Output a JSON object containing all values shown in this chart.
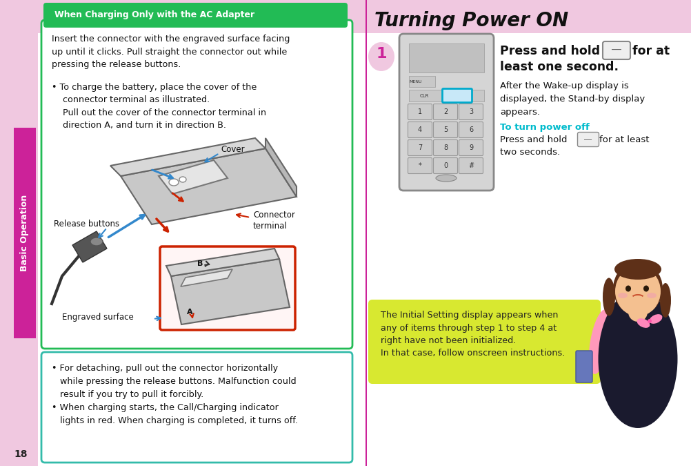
{
  "bg_color": "#f0c8e0",
  "white": "#ffffff",
  "sidebar_magenta": "#cc2299",
  "page_number": "18",
  "sidebar_text": "Basic Operation",
  "green_title_bg": "#22bb55",
  "green_border": "#22bb55",
  "charging_title": "When Charging Only with the AC Adapter",
  "charging_text": "Insert the connector with the engraved surface facing\nup until it clicks. Pull straight the connector out while\npressing the release buttons.",
  "charging_bullet": "• To charge the battery, place the cover of the\n    connector terminal as illustrated.\n    Pull out the cover of the connector terminal in\n    direction A, and turn it in direction B.",
  "label_cover": "Cover",
  "label_release": "Release buttons",
  "label_connector": "Connector\nterminal",
  "label_engraved": "Engraved surface",
  "cyan_border": "#00aacc",
  "red_color": "#cc2200",
  "blue_color": "#3388cc",
  "bottom_border": "#33bbaa",
  "bottom_text": "• For detaching, pull out the connector horizontally\n   while pressing the release buttons. Malfunction could\n   result if you try to pull it forcibly.\n• When charging starts, the Call/Charging indicator\n   lights in red. When charging is completed, it turns off.",
  "turning_title": "Turning Power ON",
  "step1_color": "#cc2299",
  "step1_num": "1",
  "press_bold_1": "Press and hold",
  "for_at": " for at",
  "least_one": "least one second.",
  "after_text": "After the Wake-up display is\ndisplayed, the Stand-by display\nappears.",
  "to_turn_label": "To turn power off",
  "to_turn_color": "#00bbcc",
  "press_hold2": "Press and hold",
  "for_at2": " for at least",
  "two_sec": "two seconds.",
  "note_bg": "#d8e830",
  "note_text": "The Initial Setting display appears when\nany of items through step 1 to step 4 at\nright have not been initialized.\nIn that case, follow onscreen instructions.",
  "divider_color": "#cc2299"
}
